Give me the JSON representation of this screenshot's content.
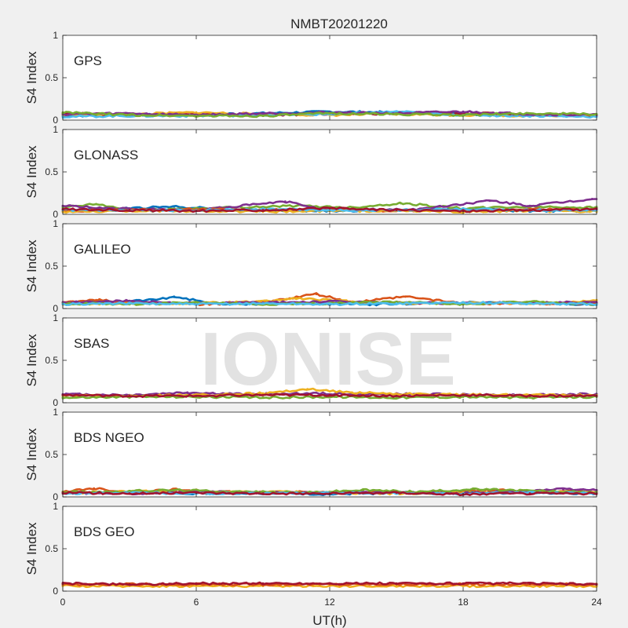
{
  "figure": {
    "title": "NMBT20201220",
    "xlabel": "UT(h)",
    "watermark": "IONISE"
  },
  "chart_data": {
    "type": "scatter",
    "title": "NMBT20201220",
    "xlabel": "UT(h)",
    "ylabel": "S4 Index",
    "xlim": [
      0,
      24
    ],
    "ylim": [
      0,
      1
    ],
    "xticks": [
      "0",
      "6",
      "12",
      "18",
      "24"
    ],
    "yticks": [
      "0",
      "0.5",
      "1"
    ],
    "grid": false,
    "series_colors": [
      "#0072bd",
      "#d95319",
      "#edb120",
      "#7e2f8e",
      "#77ac30",
      "#4dbeee",
      "#a2142f"
    ],
    "panels": [
      {
        "label": "GPS",
        "series": [
          {
            "color": "#0072bd",
            "x": [
              0,
              3,
              6,
              9,
              12,
              15,
              18,
              21,
              24
            ],
            "y": [
              0.05,
              0.06,
              0.07,
              0.08,
              0.1,
              0.09,
              0.07,
              0.06,
              0.05
            ]
          },
          {
            "color": "#a2142f",
            "x": [
              0,
              3,
              6,
              9,
              12,
              15,
              18,
              21,
              24
            ],
            "y": [
              0.08,
              0.06,
              0.07,
              0.06,
              0.07,
              0.08,
              0.08,
              0.07,
              0.06
            ]
          },
          {
            "color": "#edb120",
            "x": [
              0,
              3,
              6,
              9,
              12,
              15,
              18,
              21,
              24
            ],
            "y": [
              0.06,
              0.07,
              0.09,
              0.07,
              0.06,
              0.07,
              0.06,
              0.05,
              0.06
            ]
          },
          {
            "color": "#4dbeee",
            "x": [
              0,
              3,
              6,
              9,
              12,
              15,
              18,
              21,
              24
            ],
            "y": [
              0.04,
              0.05,
              0.05,
              0.06,
              0.07,
              0.1,
              0.06,
              0.05,
              0.04
            ]
          },
          {
            "color": "#7e2f8e",
            "x": [
              0,
              3,
              6,
              9,
              12,
              15,
              18,
              21,
              24
            ],
            "y": [
              0.07,
              0.08,
              0.06,
              0.08,
              0.09,
              0.08,
              0.1,
              0.07,
              0.06
            ]
          },
          {
            "color": "#77ac30",
            "x": [
              0,
              3,
              6,
              9,
              12,
              15,
              18,
              21,
              24
            ],
            "y": [
              0.09,
              0.06,
              0.05,
              0.05,
              0.08,
              0.07,
              0.06,
              0.08,
              0.07
            ]
          }
        ]
      },
      {
        "label": "GLONASS",
        "series": [
          {
            "color": "#0072bd",
            "x": [
              0,
              3,
              5,
              8,
              12,
              15,
              18,
              21,
              24
            ],
            "y": [
              0.05,
              0.07,
              0.09,
              0.05,
              0.04,
              0.05,
              0.06,
              0.04,
              0.04
            ]
          },
          {
            "color": "#77ac30",
            "x": [
              0,
              1.5,
              3,
              10.5,
              13,
              15.2,
              18,
              21,
              24
            ],
            "y": [
              0.08,
              0.12,
              0.05,
              0.1,
              0.08,
              0.13,
              0.07,
              0.09,
              0.08
            ]
          },
          {
            "color": "#7e2f8e",
            "x": [
              0,
              3,
              6,
              10,
              12,
              16,
              19.2,
              21,
              23.8
            ],
            "y": [
              0.1,
              0.06,
              0.05,
              0.15,
              0.05,
              0.06,
              0.16,
              0.1,
              0.18
            ]
          },
          {
            "color": "#d95319",
            "x": [
              0,
              3,
              6,
              9,
              12,
              15,
              18,
              21,
              24
            ],
            "y": [
              0.04,
              0.05,
              0.06,
              0.05,
              0.06,
              0.04,
              0.05,
              0.06,
              0.05
            ]
          },
          {
            "color": "#edb120",
            "x": [
              0,
              3,
              6,
              9,
              12,
              15,
              18,
              21,
              24
            ],
            "y": [
              0.03,
              0.04,
              0.04,
              0.03,
              0.04,
              0.04,
              0.03,
              0.04,
              0.03
            ]
          },
          {
            "color": "#4dbeee",
            "x": [
              0,
              3,
              6,
              9,
              12,
              15,
              18,
              21,
              24
            ],
            "y": [
              0.05,
              0.04,
              0.05,
              0.06,
              0.05,
              0.05,
              0.06,
              0.05,
              0.05
            ]
          },
          {
            "color": "#a2142f",
            "x": [
              0,
              3,
              6,
              9,
              12,
              15,
              18,
              21,
              24
            ],
            "y": [
              0.06,
              0.05,
              0.04,
              0.05,
              0.07,
              0.05,
              0.04,
              0.05,
              0.06
            ]
          }
        ]
      },
      {
        "label": "GALILEO",
        "series": [
          {
            "color": "#0072bd",
            "x": [
              0,
              2,
              4,
              5,
              7,
              10,
              14,
              18,
              21,
              24
            ],
            "y": [
              0.06,
              0.08,
              0.1,
              0.14,
              0.05,
              0.06,
              0.05,
              0.07,
              0.06,
              0.05
            ]
          },
          {
            "color": "#d95319",
            "x": [
              0,
              1.5,
              3,
              6,
              9,
              11.4,
              13,
              15.4,
              18,
              24
            ],
            "y": [
              0.07,
              0.1,
              0.07,
              0.05,
              0.07,
              0.17,
              0.07,
              0.14,
              0.06,
              0.06
            ]
          },
          {
            "color": "#edb120",
            "x": [
              0,
              3,
              6,
              9,
              10.5,
              13,
              16,
              19,
              22,
              24
            ],
            "y": [
              0.05,
              0.06,
              0.06,
              0.08,
              0.12,
              0.08,
              0.06,
              0.07,
              0.06,
              0.1
            ]
          },
          {
            "color": "#7e2f8e",
            "x": [
              0,
              3,
              6,
              9,
              12,
              15,
              18,
              21,
              24
            ],
            "y": [
              0.07,
              0.09,
              0.06,
              0.07,
              0.08,
              0.07,
              0.06,
              0.07,
              0.07
            ]
          },
          {
            "color": "#77ac30",
            "x": [
              0,
              3,
              6,
              9,
              12,
              15,
              18,
              21,
              24
            ],
            "y": [
              0.06,
              0.05,
              0.07,
              0.05,
              0.06,
              0.08,
              0.05,
              0.08,
              0.05
            ]
          },
          {
            "color": "#4dbeee",
            "x": [
              0,
              3,
              6,
              9,
              12,
              15,
              18,
              21,
              24
            ],
            "y": [
              0.05,
              0.06,
              0.05,
              0.06,
              0.05,
              0.06,
              0.07,
              0.06,
              0.05
            ]
          }
        ]
      },
      {
        "label": "SBAS",
        "series": [
          {
            "color": "#7e2f8e",
            "x": [
              0,
              3,
              5.6,
              8,
              11,
              14,
              17,
              20,
              24
            ],
            "y": [
              0.1,
              0.09,
              0.12,
              0.1,
              0.11,
              0.1,
              0.1,
              0.09,
              0.1
            ]
          },
          {
            "color": "#edb120",
            "x": [
              0,
              3,
              6,
              9,
              11,
              13,
              16,
              20,
              24
            ],
            "y": [
              0.08,
              0.08,
              0.09,
              0.11,
              0.16,
              0.12,
              0.1,
              0.09,
              0.09
            ]
          },
          {
            "color": "#77ac30",
            "x": [
              0,
              3,
              6,
              9,
              12,
              15,
              18,
              21,
              24
            ],
            "y": [
              0.06,
              0.07,
              0.07,
              0.06,
              0.07,
              0.06,
              0.07,
              0.06,
              0.07
            ]
          },
          {
            "color": "#a2142f",
            "x": [
              0,
              3,
              6,
              9,
              12,
              15,
              18,
              21,
              24
            ],
            "y": [
              0.09,
              0.08,
              0.08,
              0.09,
              0.09,
              0.08,
              0.09,
              0.08,
              0.08
            ]
          }
        ]
      },
      {
        "label": "BDS NGEO",
        "series": [
          {
            "color": "#0072bd",
            "x": [
              0,
              3,
              6,
              9,
              12,
              15,
              18,
              21,
              24
            ],
            "y": [
              0.05,
              0.06,
              0.04,
              0.05,
              0.03,
              0.05,
              0.06,
              0.05,
              0.04
            ]
          },
          {
            "color": "#d95319",
            "x": [
              0,
              1.4,
              3,
              5,
              8,
              12,
              16,
              19,
              24
            ],
            "y": [
              0.06,
              0.1,
              0.05,
              0.09,
              0.05,
              0.06,
              0.05,
              0.08,
              0.06
            ]
          },
          {
            "color": "#edb120",
            "x": [
              0,
              3,
              6,
              9,
              12,
              15,
              18,
              21,
              24
            ],
            "y": [
              0.04,
              0.07,
              0.05,
              0.06,
              0.05,
              0.04,
              0.05,
              0.06,
              0.05
            ]
          },
          {
            "color": "#7e2f8e",
            "x": [
              0,
              3,
              6,
              9,
              12,
              15,
              18,
              22.5,
              24
            ],
            "y": [
              0.05,
              0.04,
              0.06,
              0.05,
              0.05,
              0.06,
              0.04,
              0.09,
              0.08
            ]
          },
          {
            "color": "#77ac30",
            "x": [
              0,
              2,
              5,
              8,
              11,
              13.5,
              16,
              18.5,
              24
            ],
            "y": [
              0.06,
              0.06,
              0.08,
              0.06,
              0.05,
              0.08,
              0.06,
              0.09,
              0.05
            ]
          },
          {
            "color": "#4dbeee",
            "x": [
              0,
              3,
              6,
              9,
              12,
              15,
              18,
              21,
              24
            ],
            "y": [
              0.04,
              0.05,
              0.04,
              0.04,
              0.05,
              0.04,
              0.04,
              0.05,
              0.04
            ]
          },
          {
            "color": "#a2142f",
            "x": [
              0,
              3,
              6,
              9,
              12,
              15,
              18,
              21,
              24
            ],
            "y": [
              0.05,
              0.04,
              0.05,
              0.04,
              0.04,
              0.05,
              0.03,
              0.04,
              0.04
            ]
          }
        ]
      },
      {
        "label": "BDS GEO",
        "series": [
          {
            "color": "#edb120",
            "x": [
              0,
              3,
              6,
              9,
              12,
              15,
              18,
              21,
              24
            ],
            "y": [
              0.06,
              0.06,
              0.06,
              0.06,
              0.06,
              0.06,
              0.06,
              0.06,
              0.06
            ]
          },
          {
            "color": "#d95319",
            "x": [
              0,
              3,
              6,
              9,
              12,
              15,
              18,
              21,
              24
            ],
            "y": [
              0.08,
              0.08,
              0.08,
              0.08,
              0.08,
              0.08,
              0.08,
              0.08,
              0.08
            ]
          },
          {
            "color": "#a2142f",
            "x": [
              0,
              3,
              6,
              9,
              12,
              15,
              18,
              21,
              24
            ],
            "y": [
              0.09,
              0.08,
              0.09,
              0.09,
              0.09,
              0.09,
              0.09,
              0.09,
              0.08
            ]
          }
        ]
      }
    ]
  }
}
